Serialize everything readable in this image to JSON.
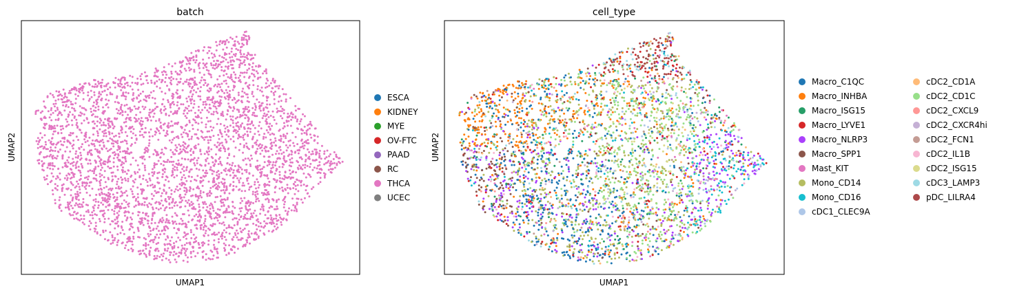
{
  "chart_data": [
    {
      "type": "scatter",
      "title": "batch",
      "xlabel": "UMAP1",
      "ylabel": "UMAP2",
      "ticks": "none",
      "grid": false,
      "legend_position": "right",
      "legend_title": "",
      "categories": [
        "ESCA",
        "KIDNEY",
        "MYE",
        "OV-FTC",
        "PAAD",
        "RC",
        "THCA",
        "UCEC"
      ],
      "colors": [
        "#1f77b4",
        "#ff7f0e",
        "#2ca02c",
        "#d62728",
        "#9467bd",
        "#8c564b",
        "#e377c2",
        "#7f7f7f"
      ],
      "visible_points": "all cells drawn in THCA color (approx. 6000 cells)"
    },
    {
      "type": "scatter",
      "title": "cell_type",
      "xlabel": "UMAP1",
      "ylabel": "UMAP2",
      "ticks": "none",
      "grid": false,
      "legend_position": "right (2 columns)",
      "legend_title": "",
      "categories": [
        "Macro_C1QC",
        "Macro_INHBA",
        "Macro_ISG15",
        "Macro_LYVE1",
        "Macro_NLRP3",
        "Macro_SPP1",
        "Mast_KIT",
        "Mono_CD14",
        "Mono_CD16",
        "cDC1_CLEC9A",
        "cDC2_CD1A",
        "cDC2_CD1C",
        "cDC2_CXCL9",
        "cDC2_CXCR4hi",
        "cDC2_FCN1",
        "cDC2_IL1B",
        "cDC2_ISG15",
        "cDC3_LAMP3",
        "pDC_LILRA4"
      ],
      "colors": [
        "#1f77b4",
        "#ff7f0e",
        "#279e68",
        "#d62728",
        "#aa40fc",
        "#8c564b",
        "#e377c2",
        "#b5bd61",
        "#17becf",
        "#aec7e8",
        "#ffbb78",
        "#98df8a",
        "#ff9896",
        "#c5b0d5",
        "#c49c94",
        "#f7b6d2",
        "#dbdb8d",
        "#9edae5",
        "#ad494a"
      ]
    }
  ]
}
